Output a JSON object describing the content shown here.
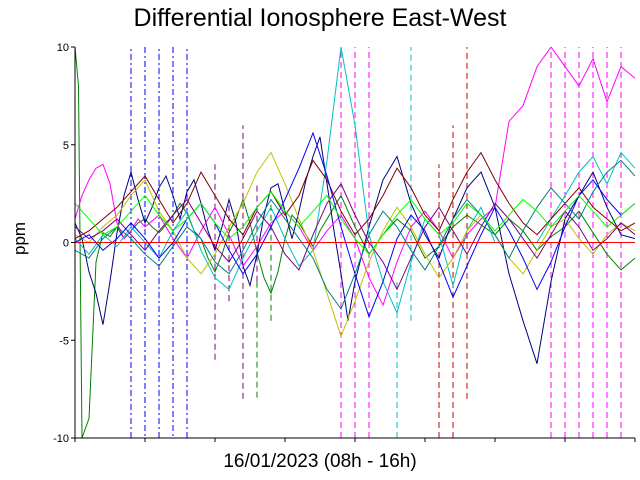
{
  "chart_data": {
    "type": "line",
    "title": "Differential Ionosphere East-West",
    "xlabel": "16/01/2023 (08h - 16h)",
    "ylabel": "ppm",
    "ylim": [
      -10,
      10
    ],
    "xlim": [
      8,
      16
    ],
    "yticks": [
      10,
      5,
      0,
      -5,
      -10
    ],
    "ytick_labels": [
      "10",
      "5",
      "0",
      "-5",
      "-10"
    ],
    "grid": false,
    "legend": "none",
    "series": [
      {
        "color": "#008000",
        "style": "solid",
        "x": [
          8.0,
          8.05,
          8.1,
          8.2,
          8.3,
          8.4,
          8.5,
          8.6,
          8.7,
          8.8,
          8.9,
          9.0,
          9.1,
          9.2,
          9.3,
          9.4,
          9.5,
          9.6,
          9.7,
          9.8,
          9.9,
          10.0,
          10.1,
          10.2,
          10.3,
          10.4,
          10.5,
          10.6,
          10.7,
          10.8,
          10.9,
          11.0,
          11.1,
          11.2,
          11.3,
          11.4,
          11.5,
          11.6,
          11.7,
          11.8,
          11.9,
          12.0,
          12.2,
          12.4,
          12.6,
          12.8,
          13.0,
          13.2,
          13.4,
          13.6,
          13.8,
          14.0,
          14.2,
          14.4,
          14.6,
          14.8,
          15.0,
          15.2,
          15.4,
          15.6,
          15.8,
          16.0
        ],
        "y": [
          10,
          8,
          -10,
          -9,
          -1,
          0.5,
          0.3,
          0.8,
          0.2,
          0.6,
          1.0,
          1.2,
          0.8,
          0.5,
          0.9,
          1.4,
          2.0,
          1.5,
          0.6,
          0.2,
          -0.8,
          -1.5,
          -0.6,
          0.5,
          1.2,
          2.2,
          1.0,
          -0.5,
          -1.8,
          -2.6,
          -1.5,
          0.2,
          1.4,
          1.0,
          0.4,
          -0.2,
          0.6,
          1.2,
          1.8,
          2.4,
          1.6,
          0.8,
          -0.6,
          0.4,
          1.2,
          0.6,
          -0.8,
          -0.2,
          0.8,
          1.4,
          0.9,
          0.4,
          1.2,
          0.6,
          -0.4,
          0.3,
          0.8,
          1.6,
          0.5,
          -0.6,
          -1.4,
          -0.8
        ]
      },
      {
        "color": "#000080",
        "style": "solid",
        "x": [
          8.0,
          8.1,
          8.2,
          8.3,
          8.4,
          8.5,
          8.6,
          8.7,
          8.8,
          8.9,
          9.0,
          9.1,
          9.2,
          9.3,
          9.4,
          9.5,
          9.6,
          9.7,
          9.8,
          9.9,
          10.0,
          10.1,
          10.2,
          10.3,
          10.4,
          10.5,
          10.6,
          10.7,
          10.8,
          10.9,
          11.0,
          11.1,
          11.2,
          11.3,
          11.4,
          11.5,
          11.6,
          11.7,
          11.8,
          11.9,
          12.0,
          12.2,
          12.4,
          12.6,
          12.8,
          13.0,
          13.2,
          13.4,
          13.6,
          13.8,
          14.0,
          14.2,
          14.4,
          14.6,
          14.8,
          15.0,
          15.2,
          15.4,
          15.6,
          15.8,
          16.0
        ],
        "y": [
          1.0,
          0.2,
          -1.5,
          -2.6,
          -4.2,
          -2.0,
          0.5,
          2.4,
          3.6,
          2.2,
          1.0,
          1.8,
          2.8,
          3.4,
          2.4,
          1.2,
          2.6,
          3.2,
          2.0,
          0.6,
          -0.4,
          0.8,
          2.2,
          1.0,
          -1.2,
          -2.2,
          -0.6,
          1.4,
          2.8,
          3.0,
          1.6,
          0.2,
          1.6,
          3.2,
          4.4,
          5.4,
          3.0,
          0.6,
          -1.6,
          -4.0,
          -2.0,
          0.8,
          3.2,
          4.4,
          2.0,
          0.4,
          -0.8,
          1.2,
          2.8,
          3.6,
          1.8,
          -1.6,
          -4.0,
          -6.2,
          -2.0,
          1.2,
          2.4,
          3.6,
          1.8,
          0.4,
          0.2
        ]
      },
      {
        "color": "#FF00FF",
        "style": "solid",
        "x": [
          8.0,
          8.1,
          8.2,
          8.3,
          8.4,
          8.5,
          8.6,
          8.7,
          8.8,
          8.9,
          9.0,
          9.2,
          9.4,
          9.6,
          9.8,
          10.0,
          10.2,
          10.4,
          10.6,
          10.8,
          11.0,
          11.2,
          11.4,
          11.6,
          11.8,
          12.0,
          12.2,
          12.4,
          12.6,
          12.8,
          13.0,
          13.2,
          13.4,
          13.6,
          13.8,
          14.0,
          14.2,
          14.4,
          14.6,
          14.8,
          15.0,
          15.2,
          15.4,
          15.6,
          15.8,
          16.0
        ],
        "y": [
          1.2,
          2.4,
          3.2,
          3.8,
          4.0,
          3.0,
          1.0,
          0.2,
          0.6,
          1.2,
          0.8,
          1.4,
          0.2,
          -0.8,
          0.6,
          1.8,
          0.4,
          -1.2,
          -0.2,
          1.0,
          1.6,
          0.8,
          -0.4,
          0.6,
          1.4,
          0.2,
          -1.8,
          -3.2,
          -1.0,
          0.8,
          1.6,
          0.6,
          -0.8,
          0.4,
          1.2,
          1.8,
          6.2,
          7.0,
          9.0,
          10.0,
          9.0,
          8.0,
          9.4,
          7.2,
          9.0,
          8.4
        ]
      },
      {
        "color": "#00C0C0",
        "style": "solid",
        "x": [
          8.0,
          8.2,
          8.4,
          8.6,
          8.8,
          9.0,
          9.2,
          9.4,
          9.6,
          9.8,
          10.0,
          10.2,
          10.4,
          10.6,
          10.8,
          11.0,
          11.2,
          11.4,
          11.6,
          11.8,
          12.0,
          12.2,
          12.4,
          12.6,
          12.8,
          13.0,
          13.2,
          13.4,
          13.6,
          13.8,
          14.0,
          14.2,
          14.4,
          14.6,
          14.8,
          15.0,
          15.2,
          15.4,
          15.6,
          15.8,
          16.0
        ],
        "y": [
          0.2,
          -0.6,
          0.4,
          -0.2,
          0.8,
          0.0,
          -0.8,
          0.6,
          1.6,
          -0.4,
          -1.8,
          -2.4,
          -0.8,
          0.6,
          1.8,
          0.2,
          -1.2,
          -0.4,
          4.2,
          10.0,
          6.0,
          0.4,
          -2.0,
          -3.6,
          -1.0,
          1.2,
          0.4,
          -2.2,
          0.6,
          1.8,
          0.0,
          0.0,
          0.0,
          0.0,
          1.2,
          2.4,
          3.6,
          4.4,
          3.0,
          4.6,
          3.8
        ]
      },
      {
        "color": "#C0C000",
        "style": "solid",
        "x": [
          8.0,
          8.2,
          8.4,
          8.6,
          8.8,
          9.0,
          9.2,
          9.4,
          9.6,
          9.8,
          10.0,
          10.2,
          10.4,
          10.6,
          10.8,
          11.0,
          11.2,
          11.4,
          11.6,
          11.8,
          12.0,
          12.2,
          12.4,
          12.6,
          12.8,
          13.0,
          13.2,
          13.4,
          13.6,
          13.8,
          14.0,
          14.2,
          14.4,
          14.6,
          14.8,
          15.0,
          15.2,
          15.4,
          15.6,
          15.8,
          16.0
        ],
        "y": [
          0.4,
          0.0,
          0.8,
          1.4,
          2.4,
          3.2,
          1.6,
          0.6,
          -0.8,
          -1.6,
          -0.6,
          0.8,
          2.0,
          3.6,
          4.6,
          3.0,
          1.2,
          -0.4,
          -2.6,
          -4.8,
          -3.0,
          -1.0,
          0.6,
          1.8,
          0.8,
          -0.6,
          -1.8,
          -0.8,
          0.6,
          1.4,
          0.4,
          -0.8,
          -1.6,
          -0.4,
          0.8,
          1.2,
          0.2,
          -0.6,
          0.4,
          1.0,
          0.6
        ]
      },
      {
        "color": "#800000",
        "style": "solid",
        "x": [
          8.0,
          8.2,
          8.4,
          8.6,
          8.8,
          9.0,
          9.2,
          9.4,
          9.6,
          9.8,
          10.0,
          10.2,
          10.4,
          10.6,
          10.8,
          11.0,
          11.2,
          11.4,
          11.6,
          11.8,
          12.0,
          12.2,
          12.4,
          12.6,
          12.8,
          13.0,
          13.2,
          13.4,
          13.6,
          13.8,
          14.0,
          14.2,
          14.4,
          14.6,
          14.8,
          15.0,
          15.2,
          15.4,
          15.6,
          15.8,
          16.0
        ],
        "y": [
          0.2,
          0.6,
          1.2,
          1.8,
          2.6,
          3.4,
          2.2,
          1.0,
          2.0,
          3.6,
          2.4,
          1.2,
          0.4,
          1.8,
          2.6,
          1.4,
          2.4,
          4.2,
          3.2,
          1.6,
          0.4,
          1.2,
          2.4,
          3.8,
          2.8,
          1.4,
          0.6,
          2.2,
          3.6,
          4.6,
          3.2,
          2.0,
          1.0,
          0.4,
          1.2,
          2.0,
          2.8,
          1.8,
          1.2,
          0.6,
          1.0
        ]
      },
      {
        "color": "#800080",
        "style": "solid",
        "x": [
          8.0,
          8.2,
          8.4,
          8.6,
          8.8,
          9.0,
          9.2,
          9.4,
          9.6,
          9.8,
          10.0,
          10.2,
          10.4,
          10.6,
          10.8,
          11.0,
          11.2,
          11.4,
          11.6,
          11.8,
          12.0,
          12.2,
          12.4,
          12.6,
          12.8,
          13.0,
          13.2,
          13.4,
          13.6,
          13.8,
          14.0,
          14.2,
          14.4,
          14.6,
          14.8,
          15.0,
          15.2,
          15.4,
          15.6,
          15.8,
          16.0
        ],
        "y": [
          0.8,
          0.2,
          0.6,
          1.2,
          0.4,
          -0.4,
          0.6,
          1.4,
          2.2,
          1.0,
          -0.2,
          -1.0,
          0.2,
          1.6,
          0.8,
          -0.6,
          -1.4,
          0.4,
          2.0,
          3.0,
          1.4,
          0.0,
          -1.0,
          -2.4,
          -0.8,
          0.8,
          1.8,
          0.6,
          -0.6,
          0.8,
          2.0,
          1.2,
          0.2,
          -0.8,
          0.4,
          1.6,
          0.8,
          -0.4,
          0.2,
          1.0,
          0.4
        ]
      },
      {
        "color": "#0000FF",
        "style": "solid",
        "x": [
          8.0,
          8.2,
          8.4,
          8.6,
          8.8,
          9.0,
          9.2,
          9.4,
          9.6,
          9.8,
          10.0,
          10.2,
          10.4,
          10.6,
          10.8,
          11.0,
          11.2,
          11.4,
          11.6,
          11.8,
          12.0,
          12.2,
          12.4,
          12.6,
          12.8,
          13.0,
          13.2,
          13.4,
          13.6,
          13.8,
          14.0,
          14.2,
          14.4,
          14.6,
          14.8,
          15.0,
          15.2,
          15.4,
          15.6,
          15.8,
          16.0
        ],
        "y": [
          0.0,
          0.4,
          -0.4,
          0.2,
          1.0,
          0.2,
          -0.8,
          0.0,
          1.2,
          2.0,
          1.0,
          -0.4,
          -1.6,
          -0.6,
          0.8,
          2.2,
          3.8,
          5.6,
          3.4,
          0.8,
          -1.6,
          -3.8,
          -2.0,
          0.2,
          1.4,
          0.6,
          -1.0,
          -2.8,
          -1.2,
          0.4,
          1.8,
          0.6,
          -0.8,
          -2.4,
          -1.0,
          0.8,
          2.4,
          3.2,
          2.2,
          1.4,
          2.0
        ]
      },
      {
        "color": "#FF0000",
        "style": "solid",
        "x": [
          8.0,
          8.2,
          8.4,
          8.6,
          8.8,
          9.0,
          9.2,
          9.4,
          9.6,
          9.8,
          10.0,
          10.2,
          10.4,
          10.6,
          10.8,
          11.0,
          11.2,
          11.4,
          11.6,
          11.8,
          12.0,
          12.2,
          12.4,
          12.6,
          12.8,
          13.0,
          13.2,
          13.4,
          13.6,
          13.8,
          14.0,
          14.2,
          14.4,
          14.6,
          14.8,
          15.0,
          15.2,
          15.4,
          15.6,
          15.8,
          16.0
        ],
        "y": [
          0.0,
          0.0,
          0.0,
          0.0,
          0.0,
          0.0,
          0.0,
          0.0,
          0.0,
          0.0,
          0.0,
          0.0,
          0.0,
          0.0,
          0.0,
          0.0,
          0.0,
          0.0,
          0.0,
          0.0,
          0.0,
          0.0,
          0.0,
          0.0,
          0.0,
          0.0,
          0.0,
          0.0,
          0.0,
          0.0,
          0.0,
          0.0,
          0.0,
          0.0,
          0.0,
          0.0,
          0.0,
          0.0,
          0.0,
          0.0,
          0.0
        ]
      },
      {
        "color": "#008080",
        "style": "solid",
        "x": [
          8.0,
          8.2,
          8.4,
          8.6,
          8.8,
          9.0,
          9.2,
          9.4,
          9.6,
          9.8,
          10.0,
          10.2,
          10.4,
          10.6,
          10.8,
          11.0,
          11.2,
          11.4,
          11.6,
          11.8,
          12.0,
          12.2,
          12.4,
          12.6,
          12.8,
          13.0,
          13.2,
          13.4,
          13.6,
          13.8,
          14.0,
          14.2,
          14.4,
          14.6,
          14.8,
          15.0,
          15.2,
          15.4,
          15.6,
          15.8,
          16.0
        ],
        "y": [
          -0.4,
          -0.8,
          0.2,
          0.8,
          0.2,
          -0.6,
          -1.2,
          -0.2,
          0.8,
          0.2,
          -1.0,
          -1.6,
          -0.4,
          1.0,
          2.2,
          1.2,
          0.2,
          -0.8,
          -2.4,
          -3.4,
          -1.6,
          0.4,
          1.6,
          0.8,
          -0.4,
          -1.4,
          -0.2,
          1.2,
          2.2,
          1.4,
          0.4,
          -0.8,
          0.6,
          1.8,
          2.8,
          2.0,
          1.2,
          2.6,
          3.6,
          4.2,
          3.4
        ]
      },
      {
        "color": "#00FF00",
        "style": "solid",
        "x": [
          8.0,
          8.2,
          8.4,
          8.6,
          8.8,
          9.0,
          9.2,
          9.4,
          9.6,
          9.8,
          10.0,
          10.2,
          10.4,
          10.6,
          10.8,
          11.0,
          11.2,
          11.4,
          11.6,
          11.8,
          12.0,
          12.2,
          12.4,
          12.6,
          12.8,
          13.0,
          13.2,
          13.4,
          13.6,
          13.8,
          14.0,
          14.2,
          14.4,
          14.6,
          14.8,
          15.0,
          15.2,
          15.4,
          15.6,
          15.8,
          16.0
        ],
        "y": [
          2.0,
          1.2,
          0.4,
          0.8,
          1.6,
          2.4,
          1.4,
          0.6,
          1.2,
          2.0,
          1.0,
          0.2,
          0.8,
          1.8,
          2.6,
          1.6,
          0.8,
          1.6,
          2.4,
          1.2,
          0.2,
          -0.6,
          0.4,
          1.4,
          2.2,
          1.2,
          0.4,
          1.0,
          2.0,
          1.4,
          0.6,
          1.4,
          2.2,
          1.6,
          0.8,
          1.6,
          2.4,
          1.6,
          0.8,
          1.4,
          2.0
        ]
      }
    ],
    "dashed_series": [
      {
        "color": "#0000FF",
        "style": "dash-dot",
        "x": [
          8.8,
          8.8,
          9.0,
          9.0,
          9.2,
          9.2,
          9.4,
          9.4,
          9.6,
          9.6
        ],
        "y": [
          -10,
          10,
          10,
          -10,
          -10,
          10,
          10,
          -10,
          -10,
          10
        ]
      },
      {
        "color": "#800080",
        "style": "dash",
        "x": [
          10.0,
          10.0,
          10.2,
          10.2,
          10.4,
          10.4,
          10.6,
          10.6
        ],
        "y": [
          -6,
          4,
          -3,
          2,
          -8,
          6,
          -2,
          3
        ]
      },
      {
        "color": "#FF00FF",
        "style": "dash",
        "x": [
          11.8,
          11.8,
          12.0,
          12.0,
          12.2,
          12.2
        ],
        "y": [
          -10,
          10,
          -10,
          10,
          -10,
          10
        ]
      },
      {
        "color": "#FF00FF",
        "style": "dash",
        "x": [
          14.8,
          14.8,
          15.0,
          15.0,
          15.2,
          15.2,
          15.4,
          15.4,
          15.6,
          15.6,
          15.8,
          15.8
        ],
        "y": [
          -10,
          10,
          -10,
          10,
          -10,
          10,
          -10,
          10,
          -10,
          10,
          -10,
          10
        ]
      },
      {
        "color": "#C00000",
        "style": "dash",
        "x": [
          13.2,
          13.2,
          13.4,
          13.4,
          13.6,
          13.6
        ],
        "y": [
          -10,
          4,
          -10,
          6,
          -8,
          10
        ]
      },
      {
        "color": "#00C0C0",
        "style": "dash",
        "x": [
          12.6,
          12.6,
          12.8,
          12.8
        ],
        "y": [
          -10,
          -2,
          -4,
          10
        ]
      },
      {
        "color": "#008000",
        "style": "dash",
        "x": [
          10.6,
          10.6,
          10.8,
          10.8
        ],
        "y": [
          -2,
          -8,
          -4,
          2
        ]
      }
    ]
  }
}
